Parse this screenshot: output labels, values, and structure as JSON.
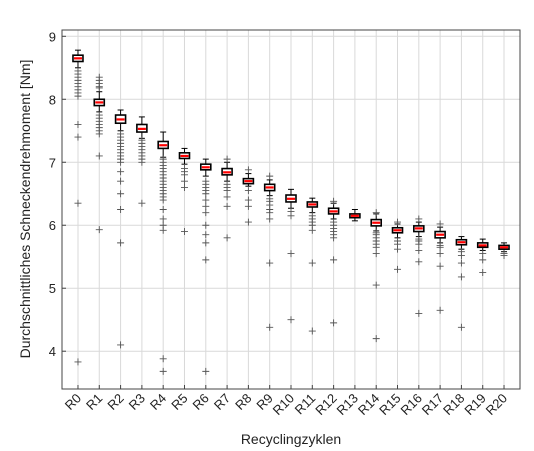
{
  "chart_data": {
    "type": "boxplot",
    "xlabel": "Recyclingzyklen",
    "ylabel": "Durchschnittliches Schneckendrehmoment [Nm]",
    "ylim": [
      3.4,
      9.1
    ],
    "yticks": [
      4,
      5,
      6,
      7,
      8,
      9
    ],
    "grid": true,
    "colors": {
      "box": "#000000",
      "median": "#ff0000",
      "outlier": "#555555",
      "grid": "#d9d9d9",
      "axis": "#444444"
    },
    "categories": [
      "R0",
      "R1",
      "R2",
      "R3",
      "R4",
      "R5",
      "R6",
      "R7",
      "R8",
      "R9",
      "R10",
      "R11",
      "R12",
      "R13",
      "R14",
      "R15",
      "R16",
      "R17",
      "R18",
      "R19",
      "R20"
    ],
    "boxes": [
      {
        "q1": 8.6,
        "median": 8.65,
        "q3": 8.7,
        "lower": 8.5,
        "upper": 8.78,
        "outliers": [
          8.45,
          8.4,
          8.35,
          8.3,
          8.25,
          8.2,
          8.15,
          8.1,
          8.05,
          7.6,
          7.4,
          6.35,
          3.83
        ]
      },
      {
        "q1": 7.9,
        "median": 7.95,
        "q3": 8.0,
        "lower": 7.8,
        "upper": 8.12,
        "outliers": [
          8.35,
          8.3,
          8.25,
          8.2,
          8.18,
          7.75,
          7.7,
          7.65,
          7.6,
          7.55,
          7.5,
          7.45,
          7.1,
          5.93
        ]
      },
      {
        "q1": 7.62,
        "median": 7.68,
        "q3": 7.75,
        "lower": 7.5,
        "upper": 7.83,
        "outliers": [
          7.45,
          7.4,
          7.35,
          7.3,
          7.25,
          7.2,
          7.15,
          7.1,
          7.05,
          7.0,
          6.85,
          6.7,
          6.5,
          6.25,
          5.72,
          4.1
        ]
      },
      {
        "q1": 7.48,
        "median": 7.53,
        "q3": 7.6,
        "lower": 7.38,
        "upper": 7.72,
        "outliers": [
          7.35,
          7.3,
          7.25,
          7.2,
          7.15,
          7.1,
          7.05,
          7.0,
          6.35
        ]
      },
      {
        "q1": 7.22,
        "median": 7.27,
        "q3": 7.33,
        "lower": 7.08,
        "upper": 7.48,
        "outliers": [
          7.05,
          7.0,
          6.95,
          6.9,
          6.85,
          6.8,
          6.75,
          6.7,
          6.65,
          6.6,
          6.55,
          6.5,
          6.45,
          6.4,
          6.25,
          6.1,
          6.0,
          5.92,
          3.88,
          3.68
        ]
      },
      {
        "q1": 7.06,
        "median": 7.1,
        "q3": 7.15,
        "lower": 6.97,
        "upper": 7.22,
        "outliers": [
          6.9,
          6.85,
          6.8,
          6.7,
          6.6,
          5.9
        ]
      },
      {
        "q1": 6.88,
        "median": 6.92,
        "q3": 6.97,
        "lower": 6.78,
        "upper": 7.05,
        "outliers": [
          6.7,
          6.65,
          6.6,
          6.55,
          6.5,
          6.4,
          6.3,
          6.2,
          6.0,
          5.85,
          5.72,
          5.45,
          3.68
        ]
      },
      {
        "q1": 6.8,
        "median": 6.84,
        "q3": 6.9,
        "lower": 6.7,
        "upper": 7.0,
        "outliers": [
          7.05,
          6.65,
          6.6,
          6.55,
          6.45,
          6.3,
          5.8
        ]
      },
      {
        "q1": 6.66,
        "median": 6.7,
        "q3": 6.74,
        "lower": 6.62,
        "upper": 6.82,
        "outliers": [
          6.88,
          6.55,
          6.4,
          6.3,
          6.05
        ]
      },
      {
        "q1": 6.55,
        "median": 6.6,
        "q3": 6.65,
        "lower": 6.47,
        "upper": 6.72,
        "outliers": [
          6.78,
          6.42,
          6.38,
          6.32,
          6.25,
          6.2,
          6.1,
          5.4,
          4.38
        ]
      },
      {
        "q1": 6.37,
        "median": 6.42,
        "q3": 6.48,
        "lower": 6.27,
        "upper": 6.57,
        "outliers": [
          6.22,
          6.15,
          5.55,
          4.5
        ]
      },
      {
        "q1": 6.29,
        "median": 6.33,
        "q3": 6.37,
        "lower": 6.2,
        "upper": 6.43,
        "outliers": [
          6.15,
          6.1,
          6.05,
          6.0,
          5.92,
          5.4,
          4.32
        ]
      },
      {
        "q1": 6.18,
        "median": 6.22,
        "q3": 6.27,
        "lower": 6.1,
        "upper": 6.35,
        "outliers": [
          6.38,
          6.05,
          6.0,
          5.95,
          5.9,
          5.85,
          5.8,
          5.45,
          4.45
        ]
      },
      {
        "q1": 6.12,
        "median": 6.15,
        "q3": 6.18,
        "lower": 6.07,
        "upper": 6.25,
        "outliers": []
      },
      {
        "q1": 5.99,
        "median": 6.04,
        "q3": 6.09,
        "lower": 5.91,
        "upper": 6.18,
        "outliers": [
          6.2,
          5.88,
          5.85,
          5.8,
          5.75,
          5.7,
          5.65,
          5.55,
          5.05,
          4.2
        ]
      },
      {
        "q1": 5.88,
        "median": 5.92,
        "q3": 5.96,
        "lower": 5.8,
        "upper": 6.02,
        "outliers": [
          6.05,
          5.75,
          5.7,
          5.62,
          5.3
        ]
      },
      {
        "q1": 5.9,
        "median": 5.95,
        "q3": 5.99,
        "lower": 5.82,
        "upper": 6.05,
        "outliers": [
          6.1,
          5.78,
          5.75,
          5.7,
          5.6,
          5.42,
          4.6
        ]
      },
      {
        "q1": 5.8,
        "median": 5.85,
        "q3": 5.9,
        "lower": 5.72,
        "upper": 5.97,
        "outliers": [
          6.02,
          5.68,
          5.65,
          5.55,
          5.35,
          4.65
        ]
      },
      {
        "q1": 5.69,
        "median": 5.73,
        "q3": 5.77,
        "lower": 5.62,
        "upper": 5.82,
        "outliers": [
          5.58,
          5.52,
          5.4,
          5.18,
          4.38
        ]
      },
      {
        "q1": 5.65,
        "median": 5.68,
        "q3": 5.72,
        "lower": 5.6,
        "upper": 5.78,
        "outliers": [
          5.55,
          5.45,
          5.25
        ]
      },
      {
        "q1": 5.62,
        "median": 5.65,
        "q3": 5.68,
        "lower": 5.58,
        "upper": 5.72,
        "outliers": [
          5.55,
          5.52
        ]
      }
    ]
  }
}
